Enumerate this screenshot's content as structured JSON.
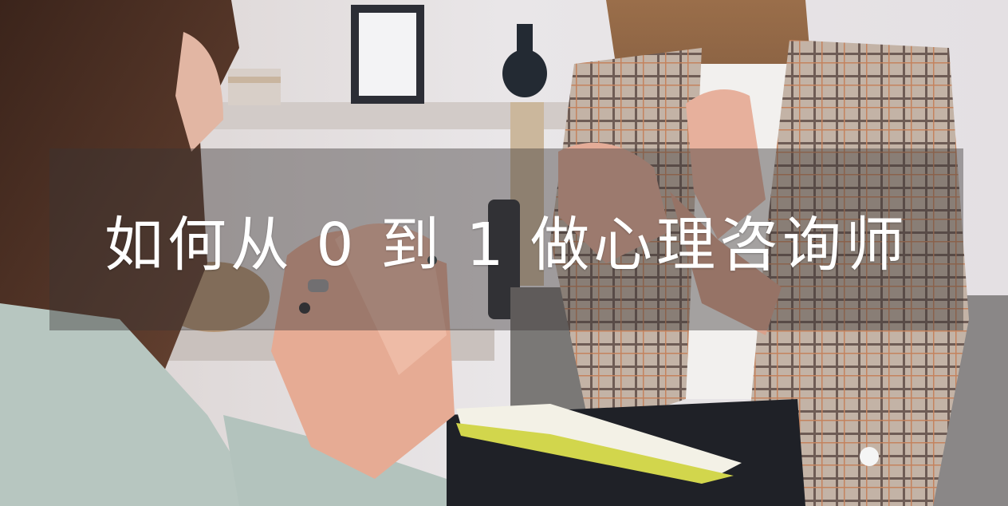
{
  "banner": {
    "title": "如何从 0 到 1 做心理咨询师"
  },
  "photo": {
    "subject": "two-women-in-counseling-conversation",
    "palette": {
      "wall": "#e6e2e3",
      "shelf": "#cfc8c6",
      "hair": "#4a2e22",
      "sweater": "#b9c8c3",
      "blazer": "#b8a79a",
      "skin": "#e8b4a0",
      "notebook": "#d8dc5a",
      "overlay": "#3a3434"
    }
  }
}
